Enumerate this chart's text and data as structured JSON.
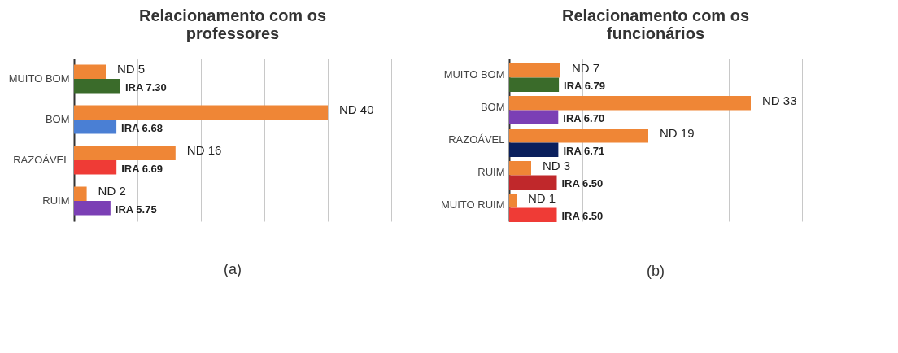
{
  "chart_data": [
    {
      "type": "bar",
      "orientation": "horizontal",
      "title": "Relacionamento com os professores",
      "categories": [
        "MUITO BOM",
        "BOM",
        "RAZOÁVEL",
        "RUIM"
      ],
      "series": [
        {
          "color": "#ef8636",
          "values": [
            5,
            40,
            16,
            2
          ],
          "value_labels": [
            "ND 5",
            "ND 40",
            "ND 16",
            "ND 2"
          ]
        },
        {
          "colors": [
            "#3a6b2a",
            "#4a7fd4",
            "#ef3b36",
            "#7b3fb5"
          ],
          "values": [
            7.3,
            6.68,
            6.69,
            5.75
          ],
          "value_labels": [
            "IRA 7.30",
            "IRA 6.68",
            "IRA 6.69",
            "IRA 5.75"
          ]
        }
      ],
      "xlim": [
        0,
        50
      ],
      "xticks": [
        {
          "value": 0,
          "label": null
        },
        {
          "value": 10,
          "label": null
        },
        {
          "value": 20,
          "label": null
        },
        {
          "value": 30,
          "label": null
        },
        {
          "value": 40,
          "label": null
        },
        {
          "value": 50,
          "label": null
        }
      ],
      "grid": "x",
      "tick_labels": "y",
      "annotations": [
        "(a)"
      ]
    },
    {
      "type": "bar",
      "orientation": "horizontal",
      "title": "Relacionamento com os funcionários",
      "categories": [
        "MUITO BOM",
        "BOM",
        "RAZOÁVEL",
        "RUIM",
        "MUITO RUIM"
      ],
      "series": [
        {
          "color": "#ef8636",
          "values": [
            7,
            33,
            19,
            3,
            1
          ],
          "value_labels": [
            "ND 7",
            "ND 33",
            "ND 19",
            "ND 3",
            "ND 1"
          ]
        },
        {
          "colors": [
            "#3a6b2a",
            "#7b3fb5",
            "#0a1f5c",
            "#c0282b",
            "#ef3b36"
          ],
          "values": [
            6.79,
            6.7,
            6.71,
            6.5,
            6.5
          ],
          "value_labels": [
            "IRA 6.79",
            "IRA 6.70",
            "IRA 6.71",
            "IRA 6.50",
            "IRA 6.50"
          ]
        }
      ],
      "xlim": [
        0,
        40
      ],
      "xticks": [
        {
          "value": 0,
          "label": null
        },
        {
          "value": 10,
          "label": null
        },
        {
          "value": 20,
          "label": null
        },
        {
          "value": 30,
          "label": null
        },
        {
          "value": 40,
          "label": null
        }
      ],
      "grid": "x",
      "tick_labels": "y",
      "annotations": [
        "(b)"
      ]
    }
  ]
}
